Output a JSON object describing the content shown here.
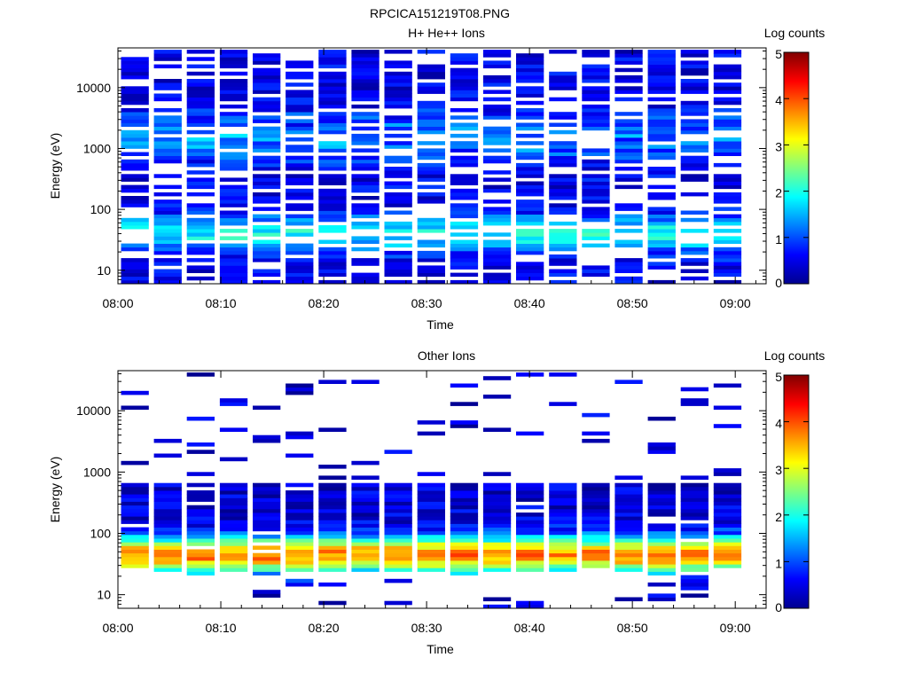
{
  "figure_title": "RPCICA151219T08.PNG",
  "colormap": [
    "#00008f",
    "#0000ff",
    "#0080ff",
    "#00ffff",
    "#80ff80",
    "#ffff00",
    "#ff8000",
    "#ff0000",
    "#800000"
  ],
  "chart_data": [
    {
      "type": "heatmap",
      "title": "H+ He++ Ions",
      "xlabel": "Time",
      "ylabel": "Energy (eV)",
      "colorbar_label": "Log counts",
      "yscale": "log",
      "ylim": [
        6,
        45000
      ],
      "xlim": [
        "08:00",
        "09:03"
      ],
      "xticks": [
        "08:00",
        "08:10",
        "08:20",
        "08:30",
        "08:40",
        "08:50",
        "09:00"
      ],
      "yticks": [
        "10",
        "100",
        "1000",
        "10000"
      ],
      "clim": [
        0,
        5
      ],
      "cticks": [
        "0",
        "1",
        "2",
        "3",
        "4",
        "5"
      ],
      "time_bins": 19,
      "bin_minutes": 3.2,
      "energy_range_eV": [
        6,
        42000
      ],
      "profile": {
        "base_level_log_counts": 0.5,
        "peak_energy_eV": 40,
        "peak_level_log_counts": 1.9,
        "secondary_peak_eV": 1500,
        "secondary_level_log_counts": 1.5,
        "fill_probability": 0.72
      },
      "seed": 11
    },
    {
      "type": "heatmap",
      "title": "Other Ions",
      "xlabel": "Time",
      "ylabel": "Energy (eV)",
      "colorbar_label": "Log counts",
      "yscale": "log",
      "ylim": [
        6,
        45000
      ],
      "xlim": [
        "08:00",
        "09:03"
      ],
      "xticks": [
        "08:00",
        "08:10",
        "08:20",
        "08:30",
        "08:40",
        "08:50",
        "09:00"
      ],
      "yticks": [
        "10",
        "100",
        "1000",
        "10000"
      ],
      "clim": [
        0,
        5
      ],
      "cticks": [
        "0",
        "1",
        "2",
        "3",
        "4",
        "5"
      ],
      "time_bins": 19,
      "bin_minutes": 3.2,
      "energy_range_eV": [
        6,
        42000
      ],
      "profile": {
        "base_level_log_counts": 0.4,
        "peak_energy_eV": 45,
        "peak_level_log_counts": 3.8,
        "secondary_peak_eV": 0,
        "secondary_level_log_counts": 0,
        "fill_probability": 0.95,
        "sparse_above_eV": 700
      },
      "seed": 29
    }
  ]
}
